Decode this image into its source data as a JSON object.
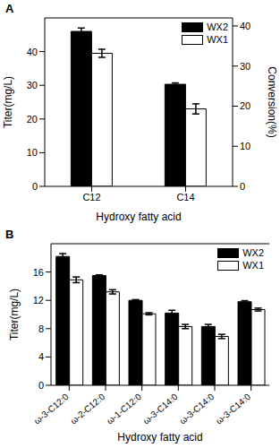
{
  "chart_data": [
    {
      "type": "bar",
      "title": "A",
      "categories": [
        "C12",
        "C14"
      ],
      "x_label": "Hydroxy fatty acid",
      "y_label": "Titer(mg/L)",
      "y2_label": "Conversion(%)",
      "ylim": [
        0,
        50
      ],
      "yticks": [
        0,
        10,
        20,
        30,
        40
      ],
      "y2lim": [
        0,
        42
      ],
      "y2ticks": [
        0,
        10,
        20,
        30,
        40
      ],
      "legend": "upper right",
      "series": [
        {
          "name": "WX2",
          "color": "#000000",
          "values": [
            46,
            30.3
          ],
          "errors": [
            1,
            0.4
          ]
        },
        {
          "name": "WX1",
          "color": "#ffffff",
          "values": [
            39.5,
            23
          ],
          "errors": [
            1.2,
            1.5
          ]
        }
      ]
    },
    {
      "type": "bar",
      "title": "B",
      "categories": [
        "ω-3-C12:0",
        "ω-2-C12:0",
        "ω-1-C12:0",
        "ω-3-C14:0",
        "ω-3-C14:0",
        "ω-3-C14:0"
      ],
      "x_label": "Hydroxy fatty acid",
      "y_label": "Titer(mg/L)",
      "ylim": [
        0,
        20
      ],
      "yticks": [
        0,
        4,
        8,
        12,
        16
      ],
      "legend": "upper right",
      "series": [
        {
          "name": "WX2",
          "color": "#000000",
          "values": [
            18.2,
            15.5,
            12.0,
            10.2,
            8.3,
            11.8
          ],
          "errors": [
            0.4,
            0.1,
            0.1,
            0.4,
            0.3,
            0.15
          ]
        },
        {
          "name": "WX1",
          "color": "#ffffff",
          "values": [
            14.9,
            13.2,
            10.1,
            8.3,
            6.9,
            10.7
          ],
          "errors": [
            0.4,
            0.3,
            0.15,
            0.3,
            0.3,
            0.2
          ]
        }
      ]
    }
  ]
}
